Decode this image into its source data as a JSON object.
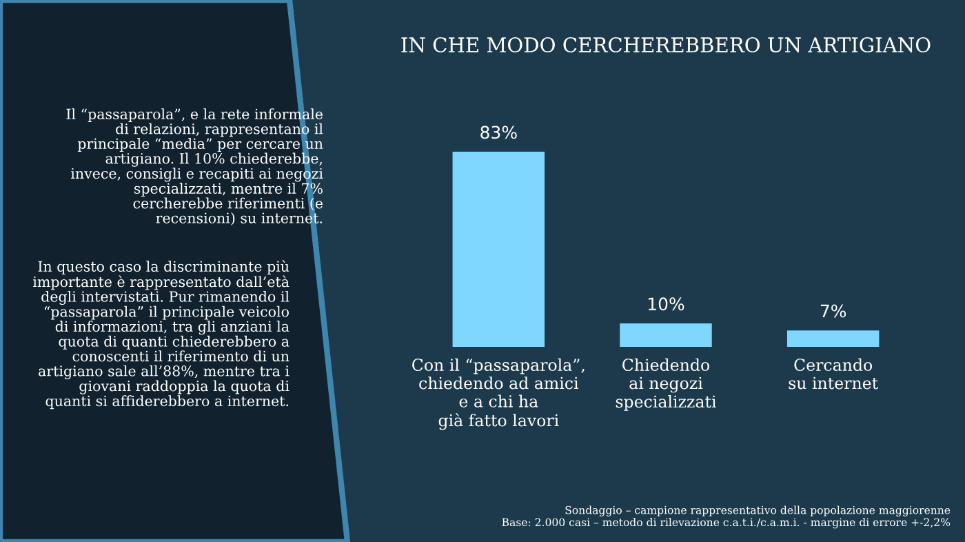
{
  "chart_data": {
    "type": "bar",
    "title": "IN CHE MODO CERCHEREBBERO UN ARTIGIANO",
    "categories": [
      "Con il “passaparola”,\nchiedendo ad amici\ne a chi ha\ngià fatto lavori",
      "Chiedendo\nai negozi\nspecializzati",
      "Cercando\nsu internet"
    ],
    "values": [
      83,
      10,
      7
    ],
    "color": "#7fd6ff",
    "data_labels": true,
    "value_labels": [
      "83%",
      "10%",
      "7%"
    ],
    "annotations": [
      "Il “passaparola”, e la rete informale\ndi relazioni, rappresentano il\nprincipale “media” per cercare un\nartigiano. Il 10% chiederebbe,\ninvece, consigli e recapiti ai negozi\nspecializzati, mentre il 7%\ncercherebbe riferimenti (e\nrecensioni) su internet.",
      "In questo caso la discriminante più\nimportante è rappresentato dall’età\ndegli intervistati. Pur rimanendo il\n“passaparola” il principale veicolo\ndi informazioni, tra gli anziani la\nquota di quanti chiederebbero a\nconoscenti il riferimento di un\nartigiano sale all’88%, mentre tra i\ngiovani raddoppia la quota di\nquanti si affiderebbero a internet.",
      "Sondaggio – campione rappresentativo della popolazione maggiorenne\nBase: 2.000 casi – metodo di rilevazione c.a.t.i./c.a.m.i. - margine di errore +-2,2%"
    ]
  }
}
